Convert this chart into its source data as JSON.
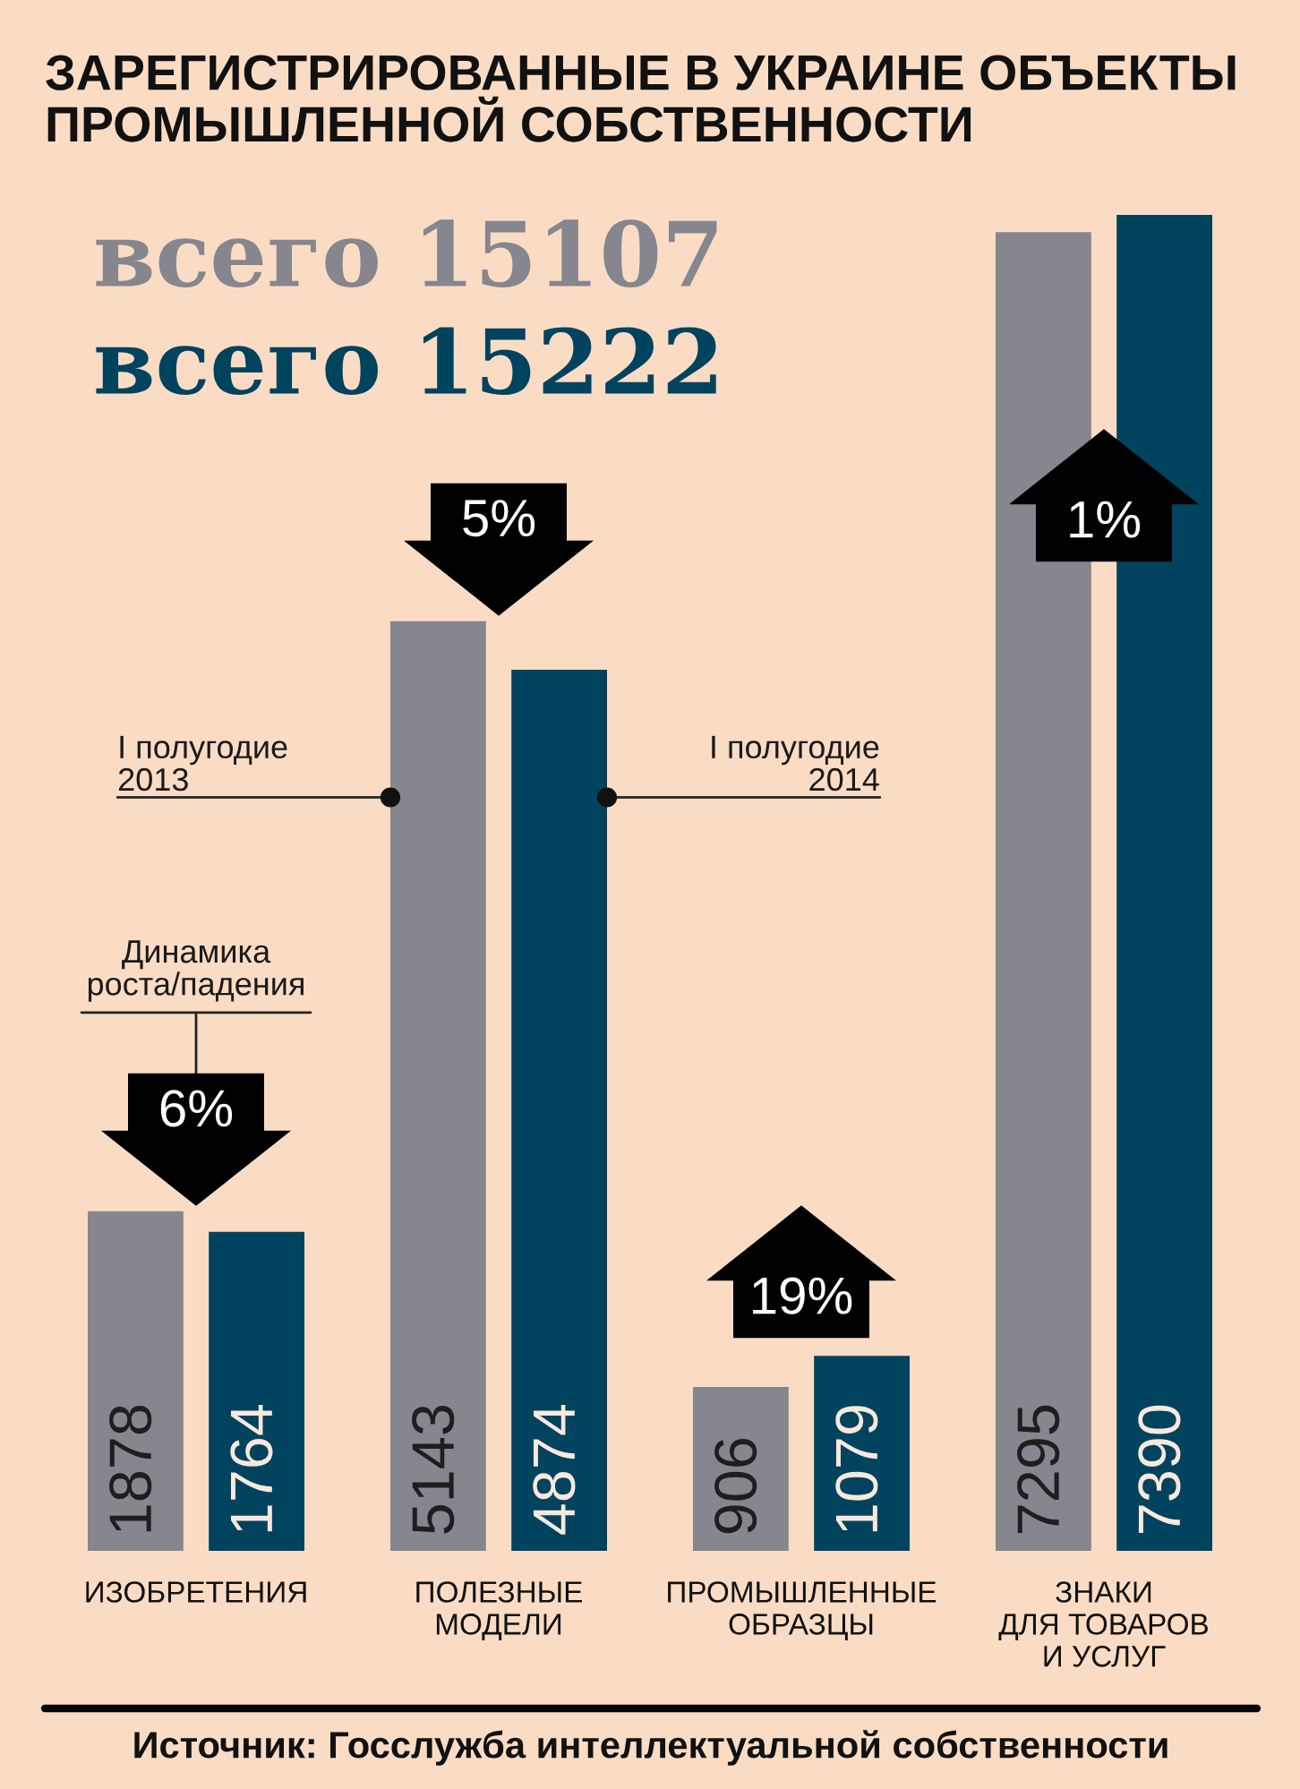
{
  "chart_data": {
    "type": "bar",
    "title": "ЗАРЕГИСТРИРОВАННЫЕ В УКРАИНЕ ОБЪЕКТЫ\nПРОМЫШЛЕННОЙ СОБСТВЕННОСТИ",
    "subtitle": "всего 15107\nвсего 15222",
    "categories": [
      "ИЗОБРЕТЕНИЯ",
      "ПОЛЕЗНЫЕ\nМОДЕЛИ",
      "ПРОМЫШЛЕННЫЕ\nОБРАЗЦЫ",
      "ЗНАКИ\nДЛЯ ТОВАРОВ\nИ УСЛУГ"
    ],
    "series": [
      {
        "name": "I полугодие\n2013",
        "color": "#85868e",
        "values": [
          1878,
          5143,
          906,
          7295
        ]
      },
      {
        "name": "I полугодие\n2014",
        "color": "#00435f",
        "values": [
          1764,
          4874,
          1079,
          7390
        ]
      }
    ],
    "data_labels": true,
    "tick_labels": "x",
    "legend": false,
    "grid": false,
    "annotations": [
      "Динамика\nроста/падения",
      "6%",
      "5%",
      "19%",
      "1%",
      "Источник: Госслужба интеллектуальной собственности"
    ]
  }
}
